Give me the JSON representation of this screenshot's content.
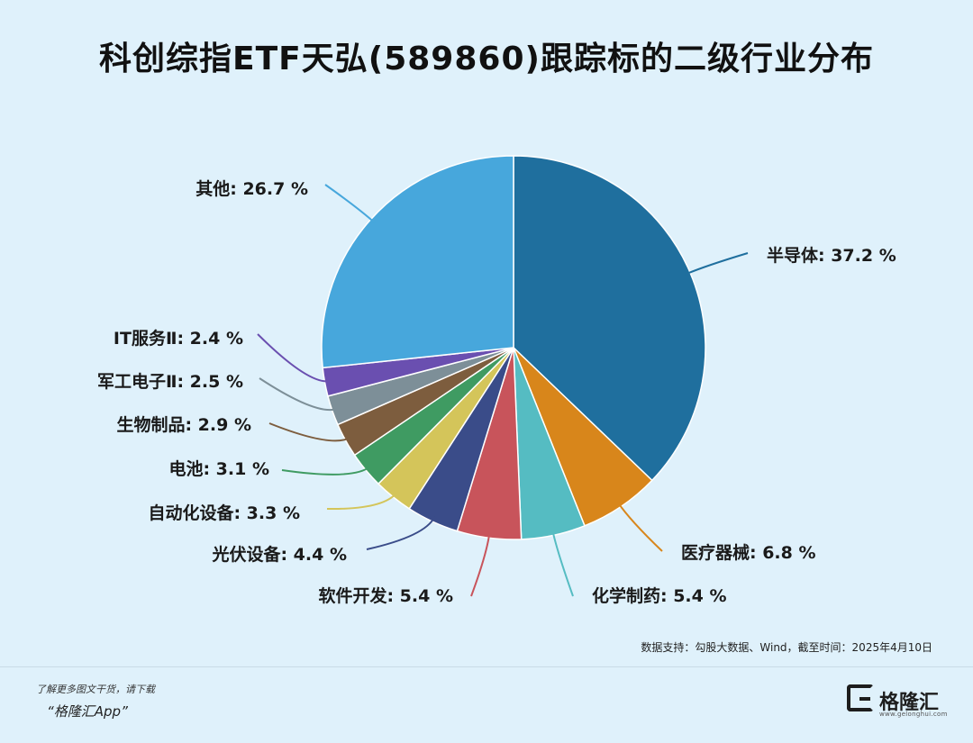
{
  "chart_data": {
    "type": "pie",
    "title": "科创综指ETF天弘(589860)跟踪标的二级行业分布",
    "slices": [
      {
        "name": "半导体",
        "value": 37.2,
        "label": "半导体: 37.2 %",
        "color": "#1f6f9e"
      },
      {
        "name": "医疗器械",
        "value": 6.8,
        "label": "医疗器械: 6.8 %",
        "color": "#d8861b"
      },
      {
        "name": "化学制药",
        "value": 5.4,
        "label": "化学制药: 5.4 %",
        "color": "#55bcc2"
      },
      {
        "name": "软件开发",
        "value": 5.4,
        "label": "软件开发: 5.4 %",
        "color": "#c8545b"
      },
      {
        "name": "光伏设备",
        "value": 4.4,
        "label": "光伏设备: 4.4 %",
        "color": "#3a4c89"
      },
      {
        "name": "自动化设备",
        "value": 3.3,
        "label": "自动化设备: 3.3 %",
        "color": "#d4c55a"
      },
      {
        "name": "电池",
        "value": 3.1,
        "label": "电池: 3.1 %",
        "color": "#3f9b62"
      },
      {
        "name": "生物制品",
        "value": 2.9,
        "label": "生物制品: 2.9 %",
        "color": "#7d5d3e"
      },
      {
        "name": "军工电子Ⅱ",
        "value": 2.5,
        "label": "军工电子Ⅱ: 2.5 %",
        "color": "#7d8f98"
      },
      {
        "name": "IT服务Ⅱ",
        "value": 2.4,
        "label": "IT服务Ⅱ: 2.4 %",
        "color": "#6a4fb0"
      },
      {
        "name": "其他",
        "value": 26.7,
        "label": "其他: 26.7 %",
        "color": "#47a7dc"
      }
    ]
  },
  "source": "数据支持：勾股大数据、Wind，截至时间：2025年4月10日",
  "promo": {
    "line1": "了解更多图文干货，请下载",
    "line2": "“格隆汇App”"
  },
  "brand": {
    "name": "格隆汇",
    "url": "www.gelonghui.com",
    "icon": "gelonghui-logo-icon"
  }
}
